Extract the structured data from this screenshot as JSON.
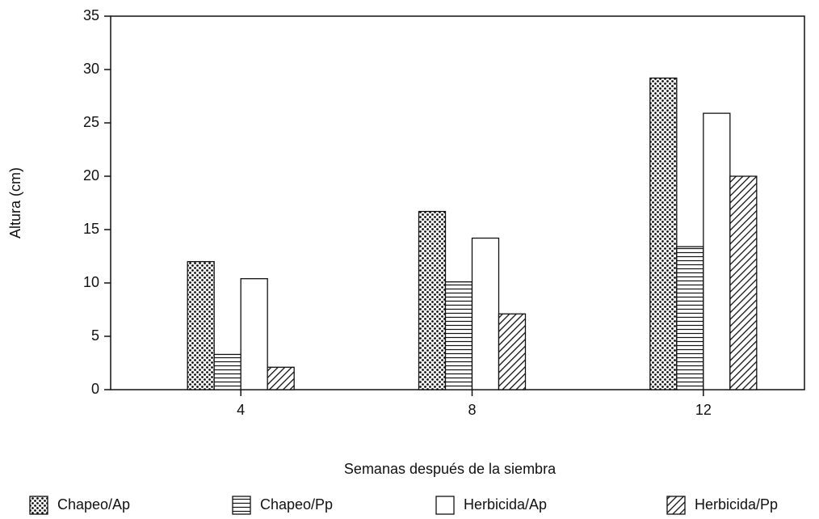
{
  "chart_data": {
    "type": "bar",
    "xlabel": "Semanas después de la siembra",
    "ylabel": "Altura (cm)",
    "categories": [
      "4",
      "8",
      "12"
    ],
    "series": [
      {
        "name": "Chapeo/Ap",
        "color": "#111111",
        "pattern": "dots",
        "values": [
          12,
          16.7,
          29.2
        ]
      },
      {
        "name": "Chapeo/Pp",
        "color": "#111111",
        "pattern": "horizontal",
        "values": [
          3.3,
          10.1,
          13.4
        ]
      },
      {
        "name": "Herbicida/Ap",
        "color": "#111111",
        "pattern": "none",
        "values": [
          10.4,
          14.2,
          25.9
        ]
      },
      {
        "name": "Herbicida/Pp",
        "color": "#111111",
        "pattern": "diagonal",
        "values": [
          2.1,
          7.1,
          20
        ]
      }
    ],
    "ylim": [
      0,
      35
    ],
    "yticks": [
      0,
      5,
      10,
      15,
      20,
      25,
      30,
      35
    ],
    "grid": false,
    "legend": "bottom"
  }
}
